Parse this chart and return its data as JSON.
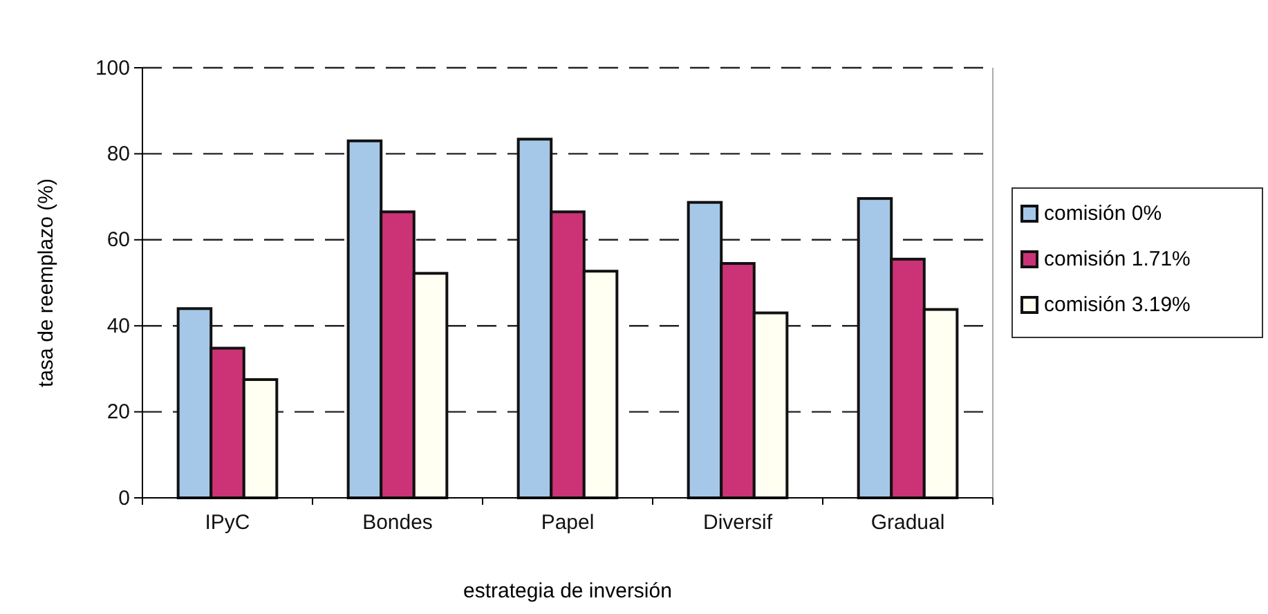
{
  "chart_data": {
    "type": "bar",
    "xlabel": "estrategia de inversión",
    "ylabel": "tasa de reemplazo (%)",
    "categories": [
      "IPyC",
      "Bondes",
      "Papel",
      "Diversif",
      "Gradual"
    ],
    "series": [
      {
        "name": "comisión 0%",
        "color": "#a6c8e8",
        "values": [
          44,
          83,
          83.4,
          68.7,
          69.6
        ]
      },
      {
        "name": "comisión 1.71%",
        "color": "#cc3377",
        "values": [
          34.8,
          66.5,
          66.5,
          54.5,
          55.5
        ]
      },
      {
        "name": "comisión 3.19%",
        "color": "#fffff2",
        "values": [
          27.5,
          52.2,
          52.7,
          43,
          43.8
        ]
      }
    ],
    "ylim": [
      0,
      100
    ],
    "yticks": [
      0,
      20,
      40,
      60,
      80,
      100
    ],
    "grid": "y",
    "legend": "right"
  }
}
